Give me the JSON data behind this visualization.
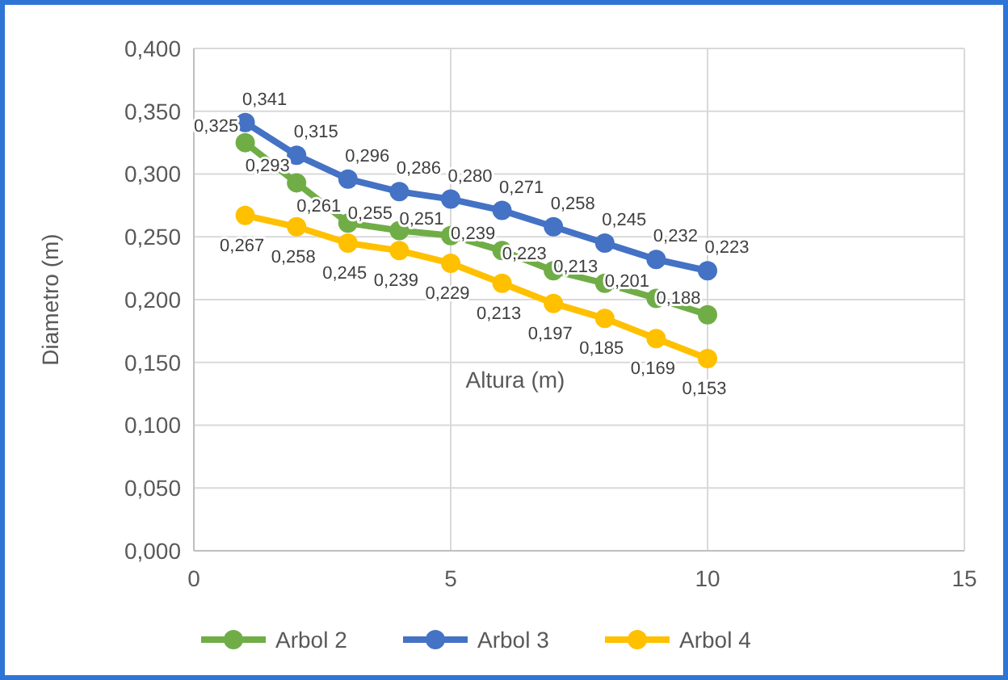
{
  "chart_data": {
    "type": "line",
    "xlabel": "Altura (m)",
    "ylabel": "Diametro (m)",
    "x": [
      1,
      2,
      3,
      4,
      5,
      6,
      7,
      8,
      9,
      10
    ],
    "series": [
      {
        "name": "Arbol 2",
        "color": "#70ad47",
        "values": [
          0.325,
          0.293,
          0.261,
          0.255,
          0.251,
          0.239,
          0.223,
          0.213,
          0.201,
          0.188
        ],
        "value_labels": [
          "0,325",
          "0,293",
          "0,261",
          "0,255",
          "0,251",
          "0,239",
          "0,223",
          "0,213",
          "0,201",
          "0,188"
        ]
      },
      {
        "name": "Arbol 3",
        "color": "#4472c4",
        "values": [
          0.341,
          0.315,
          0.296,
          0.286,
          0.28,
          0.271,
          0.258,
          0.245,
          0.232,
          0.223
        ],
        "value_labels": [
          "0,341",
          "0,315",
          "0,296",
          "0,286",
          "0,280",
          "0,271",
          "0,258",
          "0,245",
          "0,232",
          "0,223"
        ]
      },
      {
        "name": "Arbol 4",
        "color": "#ffc000",
        "values": [
          0.267,
          0.258,
          0.245,
          0.239,
          0.229,
          0.213,
          0.197,
          0.185,
          0.169,
          0.153
        ],
        "value_labels": [
          "0,267",
          "0,258",
          "0,245",
          "0,239",
          "0,229",
          "0,213",
          "0,197",
          "0,185",
          "0,169",
          "0,153"
        ]
      }
    ],
    "xlim": [
      0,
      15
    ],
    "xticks": [
      0,
      5,
      10,
      15
    ],
    "ylim": [
      0,
      0.4
    ],
    "yticks": [
      {
        "value": 0,
        "label": "0,000"
      },
      {
        "value": 0.05,
        "label": "0,050"
      },
      {
        "value": 0.1,
        "label": "0,100"
      },
      {
        "value": 0.15,
        "label": "0,150"
      },
      {
        "value": 0.2,
        "label": "0,200"
      },
      {
        "value": 0.25,
        "label": "0,250"
      },
      {
        "value": 0.3,
        "label": "0,300"
      },
      {
        "value": 0.35,
        "label": "0,350"
      },
      {
        "value": 0.4,
        "label": "0,400"
      }
    ],
    "grid": true,
    "legend": "bottom",
    "marker": "circle",
    "line_style": "solid"
  }
}
